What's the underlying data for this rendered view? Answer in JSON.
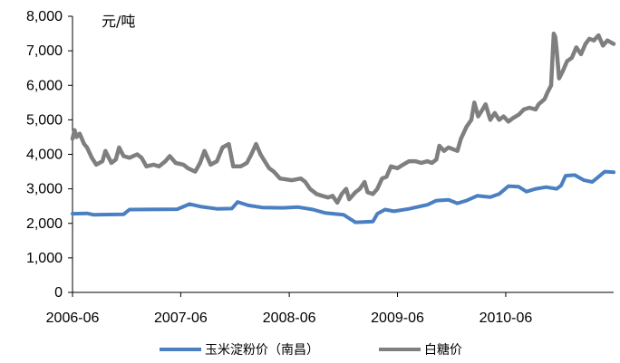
{
  "chart_data": {
    "type": "line",
    "unit_label": "元/吨",
    "x_tick_labels": [
      "2006-06",
      "2007-06",
      "2008-06",
      "2009-06",
      "2010-06"
    ],
    "x_range": [
      "2006-06-01",
      "2011-05-31"
    ],
    "y_tick_labels": [
      "0",
      "1,000",
      "2,000",
      "3,000",
      "4,000",
      "5,000",
      "6,000",
      "7,000",
      "8,000"
    ],
    "ylim": [
      0,
      8000
    ],
    "grid": false,
    "legend_position": "bottom",
    "series": [
      {
        "name": "玉米淀粉价（南昌）",
        "color": "#4a7fc1",
        "points": [
          [
            "2006-06-01",
            2280
          ],
          [
            "2006-07-20",
            2290
          ],
          [
            "2006-08-10",
            2250
          ],
          [
            "2006-11-20",
            2260
          ],
          [
            "2006-12-10",
            2400
          ],
          [
            "2007-05-20",
            2410
          ],
          [
            "2007-07-01",
            2560
          ],
          [
            "2007-08-10",
            2480
          ],
          [
            "2007-10-01",
            2420
          ],
          [
            "2007-11-20",
            2430
          ],
          [
            "2007-12-10",
            2620
          ],
          [
            "2008-01-15",
            2520
          ],
          [
            "2008-03-01",
            2460
          ],
          [
            "2008-05-10",
            2450
          ],
          [
            "2008-07-01",
            2470
          ],
          [
            "2008-08-20",
            2400
          ],
          [
            "2008-10-01",
            2300
          ],
          [
            "2008-12-01",
            2250
          ],
          [
            "2009-01-10",
            2030
          ],
          [
            "2009-03-10",
            2050
          ],
          [
            "2009-03-25",
            2280
          ],
          [
            "2009-04-20",
            2400
          ],
          [
            "2009-05-20",
            2350
          ],
          [
            "2009-07-10",
            2420
          ],
          [
            "2009-08-10",
            2480
          ],
          [
            "2009-09-10",
            2540
          ],
          [
            "2009-10-10",
            2660
          ],
          [
            "2009-11-20",
            2680
          ],
          [
            "2009-12-20",
            2580
          ],
          [
            "2010-01-20",
            2660
          ],
          [
            "2010-02-25",
            2800
          ],
          [
            "2010-04-10",
            2760
          ],
          [
            "2010-05-10",
            2850
          ],
          [
            "2010-06-10",
            3080
          ],
          [
            "2010-07-15",
            3060
          ],
          [
            "2010-08-10",
            2920
          ],
          [
            "2010-09-10",
            3000
          ],
          [
            "2010-10-15",
            3050
          ],
          [
            "2010-11-20",
            3000
          ],
          [
            "2010-12-05",
            3100
          ],
          [
            "2010-12-20",
            3380
          ],
          [
            "2011-01-20",
            3400
          ],
          [
            "2011-02-20",
            3250
          ],
          [
            "2011-03-20",
            3200
          ],
          [
            "2011-04-10",
            3350
          ],
          [
            "2011-05-01",
            3500
          ],
          [
            "2011-05-31",
            3480
          ]
        ]
      },
      {
        "name": "白糖价",
        "color": "#7f7f7f",
        "points": [
          [
            "2006-06-01",
            4450
          ],
          [
            "2006-06-08",
            4700
          ],
          [
            "2006-06-15",
            4500
          ],
          [
            "2006-06-25",
            4600
          ],
          [
            "2006-07-10",
            4300
          ],
          [
            "2006-07-20",
            4200
          ],
          [
            "2006-08-05",
            3900
          ],
          [
            "2006-08-20",
            3700
          ],
          [
            "2006-09-10",
            3800
          ],
          [
            "2006-09-20",
            4100
          ],
          [
            "2006-10-10",
            3750
          ],
          [
            "2006-10-25",
            3850
          ],
          [
            "2006-11-05",
            4200
          ],
          [
            "2006-11-20",
            3950
          ],
          [
            "2006-12-10",
            3900
          ],
          [
            "2007-01-05",
            4000
          ],
          [
            "2007-01-20",
            3900
          ],
          [
            "2007-02-05",
            3650
          ],
          [
            "2007-03-01",
            3700
          ],
          [
            "2007-03-20",
            3650
          ],
          [
            "2007-04-10",
            3800
          ],
          [
            "2007-04-25",
            3950
          ],
          [
            "2007-05-15",
            3750
          ],
          [
            "2007-06-10",
            3700
          ],
          [
            "2007-06-25",
            3600
          ],
          [
            "2007-07-20",
            3500
          ],
          [
            "2007-08-05",
            3750
          ],
          [
            "2007-08-20",
            4100
          ],
          [
            "2007-09-10",
            3700
          ],
          [
            "2007-10-01",
            3800
          ],
          [
            "2007-10-20",
            4200
          ],
          [
            "2007-11-10",
            4300
          ],
          [
            "2007-11-25",
            3650
          ],
          [
            "2007-12-20",
            3650
          ],
          [
            "2008-01-10",
            3750
          ],
          [
            "2008-01-25",
            4000
          ],
          [
            "2008-02-10",
            4300
          ],
          [
            "2008-02-25",
            4000
          ],
          [
            "2008-03-10",
            3800
          ],
          [
            "2008-03-25",
            3600
          ],
          [
            "2008-04-10",
            3500
          ],
          [
            "2008-05-01",
            3300
          ],
          [
            "2008-06-10",
            3250
          ],
          [
            "2008-07-10",
            3300
          ],
          [
            "2008-07-25",
            3200
          ],
          [
            "2008-08-10",
            3000
          ],
          [
            "2008-09-01",
            2850
          ],
          [
            "2008-09-20",
            2800
          ],
          [
            "2008-10-10",
            2750
          ],
          [
            "2008-10-25",
            2800
          ],
          [
            "2008-11-10",
            2600
          ],
          [
            "2008-11-25",
            2850
          ],
          [
            "2008-12-10",
            3000
          ],
          [
            "2008-12-20",
            2700
          ],
          [
            "2009-01-10",
            2900
          ],
          [
            "2009-01-25",
            3000
          ],
          [
            "2009-02-10",
            3200
          ],
          [
            "2009-02-20",
            2900
          ],
          [
            "2009-03-10",
            2850
          ],
          [
            "2009-03-25",
            3000
          ],
          [
            "2009-04-10",
            3300
          ],
          [
            "2009-04-25",
            3350
          ],
          [
            "2009-05-10",
            3650
          ],
          [
            "2009-06-01",
            3600
          ],
          [
            "2009-06-20",
            3700
          ],
          [
            "2009-07-10",
            3800
          ],
          [
            "2009-08-01",
            3800
          ],
          [
            "2009-08-20",
            3750
          ],
          [
            "2009-09-10",
            3800
          ],
          [
            "2009-09-25",
            3750
          ],
          [
            "2009-10-10",
            3850
          ],
          [
            "2009-10-20",
            4250
          ],
          [
            "2009-11-05",
            4100
          ],
          [
            "2009-11-20",
            4200
          ],
          [
            "2009-12-05",
            4150
          ],
          [
            "2009-12-20",
            4100
          ],
          [
            "2010-01-01",
            4450
          ],
          [
            "2010-01-20",
            4800
          ],
          [
            "2010-02-05",
            5000
          ],
          [
            "2010-02-15",
            5500
          ],
          [
            "2010-02-28",
            5100
          ],
          [
            "2010-03-15",
            5300
          ],
          [
            "2010-03-25",
            5450
          ],
          [
            "2010-04-10",
            5000
          ],
          [
            "2010-04-25",
            5200
          ],
          [
            "2010-05-10",
            5000
          ],
          [
            "2010-05-25",
            5100
          ],
          [
            "2010-06-10",
            4950
          ],
          [
            "2010-06-25",
            5050
          ],
          [
            "2010-07-15",
            5150
          ],
          [
            "2010-08-01",
            5300
          ],
          [
            "2010-08-20",
            5350
          ],
          [
            "2010-09-10",
            5300
          ],
          [
            "2010-09-20",
            5450
          ],
          [
            "2010-10-10",
            5600
          ],
          [
            "2010-10-20",
            5800
          ],
          [
            "2010-11-01",
            6000
          ],
          [
            "2010-11-10",
            7500
          ],
          [
            "2010-11-15",
            7400
          ],
          [
            "2010-11-20",
            7000
          ],
          [
            "2010-11-28",
            6200
          ],
          [
            "2010-12-10",
            6400
          ],
          [
            "2010-12-25",
            6700
          ],
          [
            "2011-01-10",
            6800
          ],
          [
            "2011-01-25",
            7100
          ],
          [
            "2011-02-10",
            6900
          ],
          [
            "2011-02-25",
            7200
          ],
          [
            "2011-03-10",
            7350
          ],
          [
            "2011-03-25",
            7300
          ],
          [
            "2011-04-10",
            7450
          ],
          [
            "2011-04-25",
            7150
          ],
          [
            "2011-05-10",
            7300
          ],
          [
            "2011-05-31",
            7200
          ]
        ]
      }
    ]
  }
}
